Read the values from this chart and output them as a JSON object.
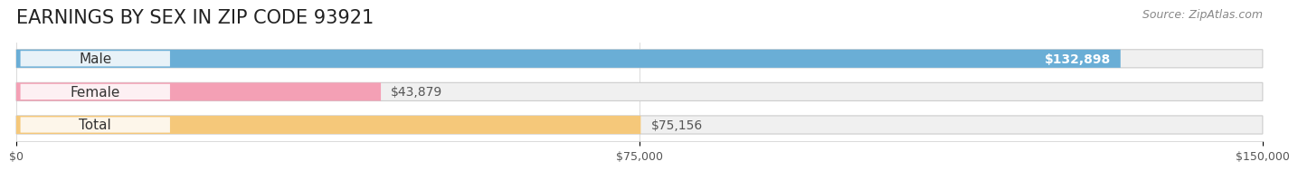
{
  "title": "EARNINGS BY SEX IN ZIP CODE 93921",
  "source": "Source: ZipAtlas.com",
  "categories": [
    "Male",
    "Female",
    "Total"
  ],
  "values": [
    132898,
    43879,
    75156
  ],
  "bar_colors": [
    "#6aaed6",
    "#f4a0b5",
    "#f5c87a"
  ],
  "bar_bg_color": "#ececec",
  "label_colors": [
    "#ffffff",
    "#555555",
    "#555555"
  ],
  "value_labels": [
    "$132,898",
    "$43,879",
    "$75,156"
  ],
  "xlim": [
    0,
    150000
  ],
  "xticks": [
    0,
    75000,
    150000
  ],
  "xtick_labels": [
    "$0",
    "$75,000",
    "$150,000"
  ],
  "title_fontsize": 15,
  "bar_label_fontsize": 11,
  "value_fontsize": 10,
  "source_fontsize": 9,
  "background_color": "#ffffff",
  "bar_height": 0.55,
  "bar_bg_alpha": 0.5
}
